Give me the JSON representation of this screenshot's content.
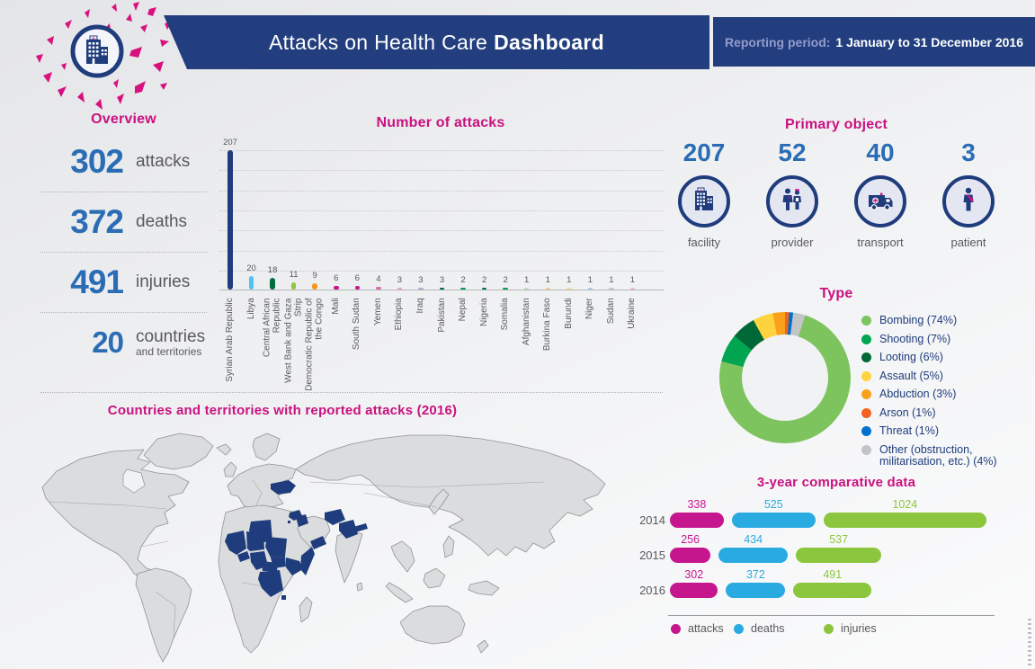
{
  "colors": {
    "navy": "#1F3C7D",
    "banner_blue": "#223E7E",
    "magenta_title": "#C9117F",
    "number_blue": "#2A6DB5",
    "text_gray": "#58595B",
    "splatter_pink": "#D9117F"
  },
  "header": {
    "emblem_icon": "hospital-building-icon",
    "title_regular": "Attacks on Health Care",
    "title_bold": "Dashboard",
    "reporting_label": "Reporting period:",
    "reporting_value": "1 January to 31 December 2016"
  },
  "overview": {
    "title": "Overview",
    "stats": [
      {
        "value": "302",
        "label": "attacks"
      },
      {
        "value": "372",
        "label": "deaths"
      },
      {
        "value": "491",
        "label": "injuries"
      },
      {
        "value": "20",
        "label": "countries",
        "sublabel": "and territories"
      }
    ]
  },
  "primary_object": {
    "title": "Primary object",
    "items": [
      {
        "value": "207",
        "label": "facility",
        "icon": "facility-icon"
      },
      {
        "value": "52",
        "label": "provider",
        "icon": "provider-icon"
      },
      {
        "value": "40",
        "label": "transport",
        "icon": "transport-icon"
      },
      {
        "value": "3",
        "label": "patient",
        "icon": "patient-icon"
      }
    ]
  },
  "type_section": {
    "title": "Type"
  },
  "comparative_section": {
    "title": "3-year comparative data"
  },
  "map_section": {
    "title": "Countries and territories with reported attacks (2016)",
    "highlighted_countries": [
      "Syrian Arab Republic",
      "Libya",
      "Central African Republic",
      "West Bank and Gaza Strip",
      "Democratic Republic of the Congo",
      "Mali",
      "South Sudan",
      "Yemen",
      "Ethiopia",
      "Iraq",
      "Pakistan",
      "Nepal",
      "Nigeria",
      "Somalia",
      "Afghanistan",
      "Burkina Faso",
      "Burundi",
      "Niger",
      "Sudan",
      "Ukraine"
    ]
  },
  "chart_data": [
    {
      "id": "attacks_by_country",
      "type": "bar",
      "title": "Number of attacks",
      "categories": [
        "Syrian Arab Republic",
        "Libya",
        "Central African Republic",
        "West Bank and Gaza Strip",
        "Democratic Republic of the Congo",
        "Mali",
        "South Sudan",
        "Yemen",
        "Ethiopia",
        "Iraq",
        "Pakistan",
        "Nepal",
        "Nigeria",
        "Somalia",
        "Afghanistan",
        "Burkina Faso",
        "Burundi",
        "Niger",
        "Sudan",
        "Ukraine"
      ],
      "values": [
        207,
        20,
        18,
        11,
        9,
        6,
        6,
        4,
        3,
        3,
        3,
        2,
        2,
        2,
        1,
        1,
        1,
        1,
        1,
        1
      ],
      "colors": [
        "#1F3C7D",
        "#4FC3F1",
        "#006B3F",
        "#8CC63F",
        "#F7941E",
        "#C6168D",
        "#C6168D",
        "#D46FB0",
        "#E2A6CB",
        "#B5A8D3",
        "#00693E",
        "#00A155",
        "#00784A",
        "#00A155",
        "#BCE0B8",
        "#F8C98F",
        "#F3DE9C",
        "#A9CBEA",
        "#C4C6D4",
        "#E7BCD8"
      ],
      "xlabel": "",
      "ylabel": "",
      "ylim": [
        0,
        207
      ],
      "grid": "dotted-horizontal"
    },
    {
      "id": "type_of_attack",
      "type": "pie",
      "donut": true,
      "title": "Type",
      "labels": [
        "Bombing (74%)",
        "Shooting (7%)",
        "Looting (6%)",
        "Assault (5%)",
        "Abduction (3%)",
        "Arson (1%)",
        "Threat (1%)",
        "Other (obstruction, militarisation, etc.) (4%)"
      ],
      "values": [
        74,
        7,
        6,
        5,
        3,
        1,
        1,
        4
      ],
      "colors": [
        "#7DC35E",
        "#00A551",
        "#006837",
        "#FFD23F",
        "#F9A11B",
        "#F26322",
        "#0072CE",
        "#C3C4C6"
      ],
      "legend_position": "right"
    },
    {
      "id": "three_year_comparative",
      "type": "bar",
      "orientation": "horizontal",
      "title": "3-year comparative data",
      "categories": [
        "2014",
        "2015",
        "2016"
      ],
      "series": [
        {
          "name": "attacks",
          "color": "#C6168D",
          "values": [
            338,
            256,
            302
          ]
        },
        {
          "name": "deaths",
          "color": "#29ABE2",
          "values": [
            525,
            434,
            372
          ]
        },
        {
          "name": "injuries",
          "color": "#8CC63E",
          "values": [
            1024,
            537,
            491
          ]
        }
      ],
      "legend_position": "bottom"
    }
  ]
}
